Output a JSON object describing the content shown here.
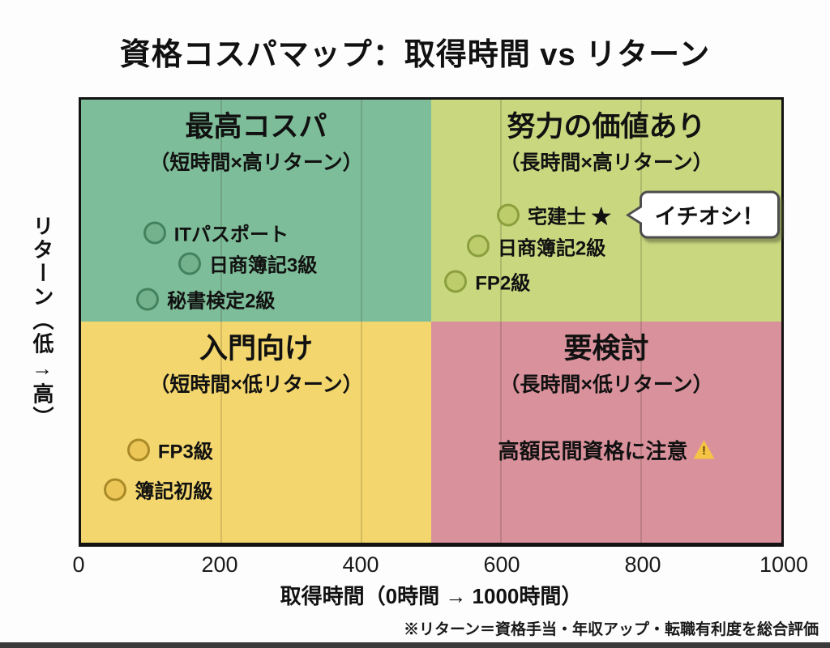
{
  "page": {
    "title": "資格コスパマップ：取得時間 vs リターン",
    "footnote": "※リターン＝資格手当・年収アップ・転職有利度を総合評価",
    "background": "#fdfdfd",
    "bottom_bar_color": "#3b3b3b"
  },
  "chart_data": {
    "type": "scatter",
    "title": "資格コスパマップ：取得時間 vs リターン",
    "xlabel": "取得時間（0時間 → 1000時間）",
    "ylabel": "リターン（低→高）",
    "xlim": [
      0,
      1000
    ],
    "ylim": [
      0,
      100
    ],
    "x_ticks": [
      0,
      200,
      400,
      600,
      800,
      1000
    ],
    "grid": "vertical-200-step",
    "frame_color": "#131313",
    "quadrants": [
      {
        "id": "top-left",
        "title": "最高コスパ",
        "subtitle": "（短時間×高リターン）",
        "bg": "#7ebd99",
        "marker_fill": "#73b28d",
        "marker_edge": "#44825f"
      },
      {
        "id": "top-right",
        "title": "努力の価値あり",
        "subtitle": "（長時間×高リターン）",
        "bg": "#c9d77f",
        "marker_fill": "#bdcd6c",
        "marker_edge": "#8c9f3e"
      },
      {
        "id": "bottom-left",
        "title": "入門向け",
        "subtitle": "（短時間×低リターン）",
        "bg": "#f3d76e",
        "marker_fill": "#ecc757",
        "marker_edge": "#aa8a28"
      },
      {
        "id": "bottom-right",
        "title": "要検討",
        "subtitle": "（長時間×低リターン）",
        "bg": "#d9919b",
        "note": "高額民間資格に注意",
        "note_icon": "warning",
        "note_icon_char": "!"
      }
    ],
    "points": [
      {
        "label": "ITパスポート",
        "x": 105,
        "y": 70,
        "quadrant": 0
      },
      {
        "label": "日商簿記3級",
        "x": 155,
        "y": 63,
        "quadrant": 0
      },
      {
        "label": "秘書検定2級",
        "x": 95,
        "y": 55,
        "quadrant": 0
      },
      {
        "label": "宅建士 ★",
        "x": 610,
        "y": 74,
        "quadrant": 1
      },
      {
        "label": "日商簿記2級",
        "x": 567,
        "y": 67,
        "quadrant": 1
      },
      {
        "label": "FP2級",
        "x": 535,
        "y": 59,
        "quadrant": 1
      },
      {
        "label": "FP3級",
        "x": 82,
        "y": 21,
        "quadrant": 2
      },
      {
        "label": "簿記初級",
        "x": 49,
        "y": 12,
        "quadrant": 2
      }
    ],
    "annotation": {
      "text": "イチオシ！",
      "target": "宅建士 ★",
      "x": 797,
      "y": 74
    }
  }
}
